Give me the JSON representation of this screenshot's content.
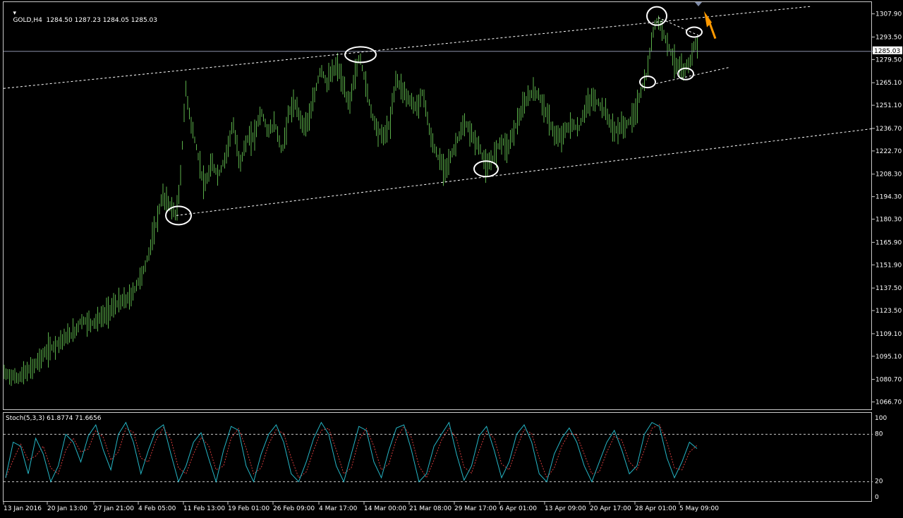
{
  "symbol_title": "GOLD,H4  1284.50 1287.23 1284.05 1285.03",
  "stoch_title": "Stoch(5,3,3) 61.8774 71.6656",
  "current_price_label": "1285.03",
  "colors": {
    "background": "#000000",
    "bars": "#5bb04a",
    "stoch_main": "#25b6c6",
    "stoch_signal": "#d23b3b",
    "accent": "#ff9900",
    "grid": "#c8c8c8",
    "annotation": "#ffffff"
  },
  "chart_data": [
    {
      "type": "ohlc",
      "ylim": [
        1063.0,
        1313.0
      ],
      "ytick_labels": [
        "1307.90",
        "1293.50",
        "1279.50",
        "1265.10",
        "1251.10",
        "1236.70",
        "1222.70",
        "1208.30",
        "1194.30",
        "1180.30",
        "1165.90",
        "1151.90",
        "1137.50",
        "1123.50",
        "1109.10",
        "1095.10",
        "1080.70",
        "1066.70"
      ],
      "xtick_labels": [
        "13 Jan 2016",
        "20 Jan 13:00",
        "27 Jan 21:00",
        "4 Feb 05:00",
        "11 Feb 13:00",
        "19 Feb 01:00",
        "26 Feb 09:00",
        "4 Mar 17:00",
        "14 Mar 00:00",
        "21 Mar 08:00",
        "29 Mar 17:00",
        "6 Apr 01:00",
        "13 Apr 09:00",
        "20 Apr 17:00",
        "28 Apr 01:00",
        "5 May 09:00"
      ],
      "close_path": [
        [
          0,
          1085
        ],
        [
          20,
          1082
        ],
        [
          40,
          1088
        ],
        [
          60,
          1098
        ],
        [
          80,
          1105
        ],
        [
          100,
          1110
        ],
        [
          110,
          1118
        ],
        [
          125,
          1116
        ],
        [
          140,
          1120
        ],
        [
          160,
          1128
        ],
        [
          180,
          1132
        ],
        [
          200,
          1150
        ],
        [
          215,
          1175
        ],
        [
          225,
          1195
        ],
        [
          235,
          1190
        ],
        [
          245,
          1183
        ],
        [
          250,
          1200
        ],
        [
          258,
          1262
        ],
        [
          266,
          1240
        ],
        [
          275,
          1222
        ],
        [
          285,
          1200
        ],
        [
          295,
          1215
        ],
        [
          305,
          1208
        ],
        [
          315,
          1220
        ],
        [
          325,
          1240
        ],
        [
          335,
          1215
        ],
        [
          345,
          1230
        ],
        [
          355,
          1232
        ],
        [
          365,
          1248
        ],
        [
          375,
          1235
        ],
        [
          385,
          1240
        ],
        [
          395,
          1222
        ],
        [
          405,
          1248
        ],
        [
          415,
          1252
        ],
        [
          425,
          1238
        ],
        [
          435,
          1245
        ],
        [
          442,
          1260
        ],
        [
          450,
          1275
        ],
        [
          458,
          1265
        ],
        [
          466,
          1272
        ],
        [
          474,
          1276
        ],
        [
          482,
          1262
        ],
        [
          490,
          1252
        ],
        [
          498,
          1270
        ],
        [
          505,
          1282
        ],
        [
          512,
          1268
        ],
        [
          520,
          1250
        ],
        [
          528,
          1238
        ],
        [
          538,
          1232
        ],
        [
          548,
          1240
        ],
        [
          556,
          1268
        ],
        [
          565,
          1262
        ],
        [
          575,
          1255
        ],
        [
          585,
          1250
        ],
        [
          595,
          1260
        ],
        [
          605,
          1232
        ],
        [
          615,
          1220
        ],
        [
          625,
          1212
        ],
        [
          635,
          1220
        ],
        [
          645,
          1232
        ],
        [
          655,
          1240
        ],
        [
          665,
          1232
        ],
        [
          675,
          1225
        ],
        [
          685,
          1212
        ],
        [
          695,
          1220
        ],
        [
          705,
          1230
        ],
        [
          715,
          1225
        ],
        [
          725,
          1238
        ],
        [
          735,
          1248
        ],
        [
          745,
          1258
        ],
        [
          755,
          1260
        ],
        [
          765,
          1252
        ],
        [
          775,
          1240
        ],
        [
          785,
          1230
        ],
        [
          795,
          1235
        ],
        [
          805,
          1240
        ],
        [
          815,
          1236
        ],
        [
          825,
          1250
        ],
        [
          835,
          1256
        ],
        [
          845,
          1252
        ],
        [
          855,
          1246
        ],
        [
          865,
          1235
        ],
        [
          875,
          1238
        ],
        [
          885,
          1240
        ],
        [
          895,
          1246
        ],
        [
          905,
          1262
        ],
        [
          912,
          1270
        ],
        [
          918,
          1290
        ],
        [
          925,
          1305
        ],
        [
          932,
          1300
        ],
        [
          940,
          1292
        ],
        [
          948,
          1282
        ],
        [
          956,
          1275
        ],
        [
          964,
          1272
        ],
        [
          972,
          1278
        ],
        [
          980,
          1290
        ],
        [
          985,
          1285
        ]
      ],
      "annotations": [
        "ellipses at swing highs and lows",
        "upper trendline",
        "lower trendline",
        "arrow"
      ]
    },
    {
      "type": "line",
      "ylim": [
        0,
        100
      ],
      "ytick_labels": [
        "100",
        "80",
        "20",
        "0"
      ],
      "levels": [
        80,
        20
      ],
      "series": [
        {
          "values": [
            25,
            70,
            65,
            30,
            75,
            55,
            20,
            40,
            80,
            70,
            45,
            78,
            92,
            60,
            35,
            80,
            95,
            70,
            30,
            60,
            85,
            92,
            55,
            20,
            40,
            70,
            82,
            50,
            20,
            60,
            90,
            85,
            40,
            20,
            55,
            80,
            92,
            70,
            30,
            20,
            45,
            75,
            95,
            80,
            40,
            20,
            55,
            90,
            85,
            45,
            25,
            60,
            88,
            92,
            60,
            20,
            30,
            65,
            80,
            95,
            55,
            22,
            40,
            78,
            90,
            60,
            25,
            45,
            80,
            92,
            70,
            30,
            20,
            55,
            75,
            88,
            70,
            40,
            20,
            45,
            70,
            85,
            60,
            30,
            40,
            80,
            95,
            90,
            50,
            25,
            45,
            70,
            62
          ]
        }
      ]
    }
  ]
}
